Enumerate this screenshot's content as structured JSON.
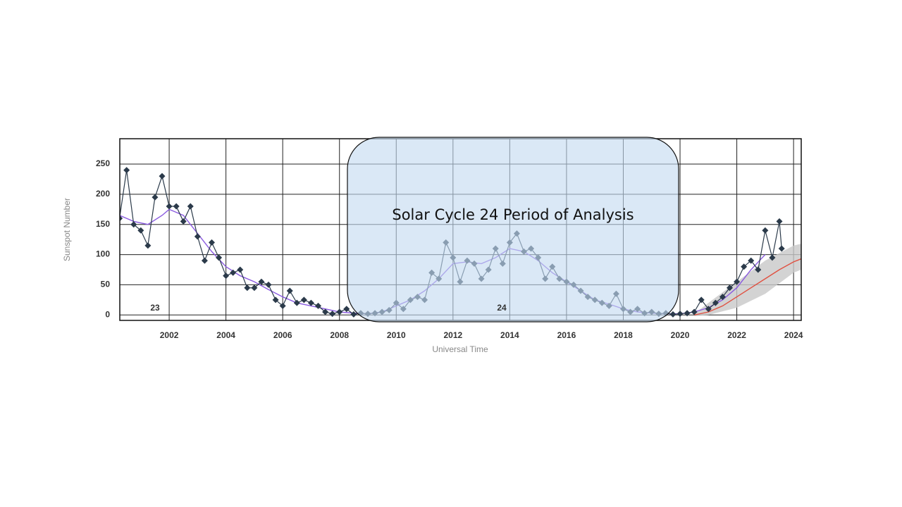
{
  "chart_data": {
    "type": "line",
    "ylabel": "Sunspot Number",
    "xlabel": "Universal Time",
    "annotation": "Solar Cycle 24 Period of Analysis",
    "cycle_labels": [
      "23",
      "24"
    ],
    "xlim": [
      2000.26,
      2024.27
    ],
    "ylim": [
      -9,
      292
    ],
    "xticks": [
      2002,
      2004,
      2006,
      2008,
      2010,
      2012,
      2014,
      2016,
      2018,
      2020,
      2022,
      2024
    ],
    "yticks": [
      0,
      50,
      100,
      150,
      200,
      250
    ],
    "grid": true,
    "band": {
      "color": "#c8c8c8",
      "x": [
        2020.5,
        2021,
        2022,
        2023,
        2024,
        2024.27
      ],
      "upper": [
        2,
        20,
        55,
        90,
        115,
        118
      ],
      "lower": [
        -2,
        0,
        12,
        35,
        70,
        75
      ]
    },
    "series": [
      {
        "color": "#e05040",
        "marker": "none",
        "x": [
          2020.5,
          2021,
          2021.5,
          2022,
          2022.5,
          2023,
          2023.5,
          2024,
          2024.27
        ],
        "values": [
          0,
          5,
          15,
          30,
          45,
          60,
          75,
          88,
          93
        ]
      },
      {
        "color": "#8a5ae0",
        "marker": "none",
        "x": [
          2000.25,
          2000.75,
          2001.25,
          2001.75,
          2002.0,
          2002.5,
          2003.0,
          2003.5,
          2004.0,
          2004.5,
          2005.0,
          2005.5,
          2006.0,
          2006.5,
          2007.0,
          2007.5,
          2008.0,
          2008.5,
          2009.0,
          2009.5,
          2010.0,
          2010.5,
          2011.0,
          2011.5,
          2012.0,
          2012.5,
          2013.0,
          2013.5,
          2014.0,
          2014.5,
          2015.0,
          2015.5,
          2016.0,
          2016.5,
          2017.0,
          2017.5,
          2018.0,
          2018.5,
          2019.0,
          2019.5,
          2020.0,
          2020.5,
          2021.0,
          2021.5,
          2022.0,
          2022.5,
          2023.0
        ],
        "values": [
          165,
          155,
          150,
          165,
          175,
          165,
          135,
          105,
          80,
          65,
          55,
          42,
          30,
          20,
          15,
          10,
          5,
          3,
          2,
          5,
          15,
          25,
          40,
          60,
          85,
          88,
          85,
          95,
          110,
          105,
          90,
          70,
          55,
          40,
          25,
          18,
          10,
          5,
          3,
          2,
          2,
          5,
          12,
          25,
          45,
          75,
          100
        ]
      },
      {
        "color": "#2b3a4a",
        "marker": "diamond",
        "x": [
          2000.25,
          2000.5,
          2000.75,
          2001.0,
          2001.25,
          2001.5,
          2001.75,
          2002.0,
          2002.25,
          2002.5,
          2002.75,
          2003.0,
          2003.25,
          2003.5,
          2003.75,
          2004.0,
          2004.25,
          2004.5,
          2004.75,
          2005.0,
          2005.25,
          2005.5,
          2005.75,
          2006.0,
          2006.25,
          2006.5,
          2006.75,
          2007.0,
          2007.25,
          2007.5,
          2007.75,
          2008.0,
          2008.25,
          2008.5,
          2008.75,
          2009.0,
          2009.25,
          2009.5,
          2009.75,
          2010.0,
          2010.25,
          2010.5,
          2010.75,
          2011.0,
          2011.25,
          2011.5,
          2011.75,
          2012.0,
          2012.25,
          2012.5,
          2012.75,
          2013.0,
          2013.25,
          2013.5,
          2013.75,
          2014.0,
          2014.25,
          2014.5,
          2014.75,
          2015.0,
          2015.25,
          2015.5,
          2015.75,
          2016.0,
          2016.25,
          2016.5,
          2016.75,
          2017.0,
          2017.25,
          2017.5,
          2017.75,
          2018.0,
          2018.25,
          2018.5,
          2018.75,
          2019.0,
          2019.25,
          2019.5,
          2019.75,
          2020.0,
          2020.25,
          2020.5,
          2020.75,
          2021.0,
          2021.25,
          2021.5,
          2021.75,
          2022.0,
          2022.25,
          2022.5,
          2022.75,
          2023.0,
          2023.25,
          2023.5,
          2023.58
        ],
        "values": [
          160,
          240,
          150,
          140,
          115,
          195,
          230,
          180,
          180,
          155,
          180,
          130,
          90,
          120,
          95,
          65,
          70,
          75,
          45,
          45,
          55,
          50,
          25,
          15,
          40,
          20,
          25,
          20,
          15,
          5,
          2,
          5,
          10,
          1,
          3,
          2,
          3,
          5,
          8,
          20,
          10,
          25,
          30,
          25,
          70,
          60,
          120,
          95,
          55,
          90,
          85,
          60,
          75,
          110,
          85,
          120,
          135,
          105,
          110,
          95,
          60,
          80,
          60,
          55,
          50,
          40,
          30,
          25,
          20,
          15,
          35,
          10,
          5,
          10,
          3,
          5,
          2,
          3,
          1,
          2,
          3,
          5,
          25,
          10,
          20,
          30,
          45,
          55,
          80,
          90,
          75,
          140,
          95,
          155,
          110
        ]
      }
    ]
  }
}
